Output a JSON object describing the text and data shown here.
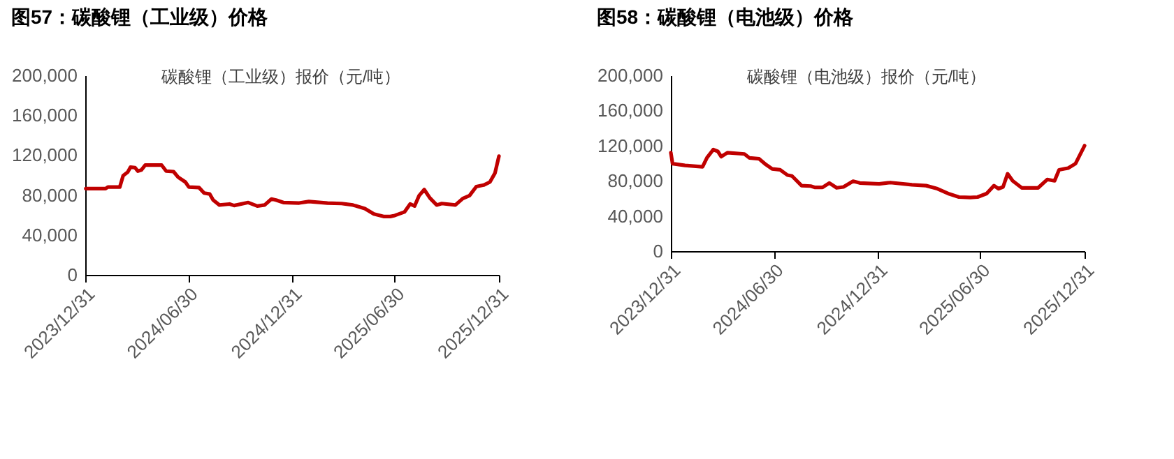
{
  "chart_data": [
    {
      "type": "line",
      "title": "图57：碳酸锂（工业级）价格",
      "annotations": [
        "碳酸锂（工业级）报价（元/吨）"
      ],
      "series": [
        {
          "color": "#c00000",
          "x": [
            "2024-01-01",
            "2024-02-05",
            "2024-02-09",
            "2024-03-01",
            "2024-03-07",
            "2024-03-15",
            "2024-03-20",
            "2024-03-28",
            "2024-04-02",
            "2024-04-08",
            "2024-04-15",
            "2024-05-14",
            "2024-05-22",
            "2024-06-04",
            "2024-06-12",
            "2024-06-25",
            "2024-07-01",
            "2024-07-19",
            "2024-07-28",
            "2024-08-07",
            "2024-08-13",
            "2024-08-24",
            "2024-09-11",
            "2024-09-19",
            "2024-10-14",
            "2024-10-30",
            "2024-11-12",
            "2024-11-24",
            "2024-12-02",
            "2024-12-15",
            "2025-01-12",
            "2025-01-29",
            "2025-03-03",
            "2025-03-28",
            "2025-04-17",
            "2025-05-08",
            "2025-05-24",
            "2025-06-10",
            "2025-06-22",
            "2025-06-30",
            "2025-07-17",
            "2025-07-27",
            "2025-08-04",
            "2025-08-12",
            "2025-08-21",
            "2025-08-31",
            "2025-09-12",
            "2025-09-21",
            "2025-10-15",
            "2025-10-28",
            "2025-11-09",
            "2025-11-21",
            "2025-12-04",
            "2025-12-15",
            "2025-12-24",
            "2025-12-31"
          ],
          "values": [
            86500,
            86500,
            88000,
            88000,
            99500,
            103000,
            108000,
            107500,
            104000,
            105000,
            110000,
            110000,
            104000,
            103500,
            98000,
            93000,
            88000,
            87500,
            82000,
            81000,
            75000,
            70000,
            71000,
            69500,
            72500,
            69000,
            70000,
            76000,
            75000,
            72500,
            72000,
            73500,
            72000,
            71500,
            70000,
            66500,
            61000,
            58500,
            58500,
            59500,
            63000,
            71000,
            69000,
            79500,
            85500,
            77000,
            70000,
            71500,
            70000,
            76500,
            79500,
            88500,
            90000,
            93000,
            102000,
            119000
          ]
        }
      ],
      "xlim": [
        "2023-12-31",
        "2025-12-31"
      ],
      "xticks": [
        {
          "value": "2023-12-31",
          "label": "2023/12/31"
        },
        {
          "value": "2024-06-30",
          "label": "2024/06/30"
        },
        {
          "value": "2024-12-31",
          "label": "2024/12/31"
        },
        {
          "value": "2025-06-30",
          "label": "2025/06/30"
        },
        {
          "value": "2025-12-31",
          "label": "2025/12/31"
        }
      ],
      "ylim": [
        0,
        200000
      ],
      "yticks": [
        {
          "value": 0,
          "label": "0"
        },
        {
          "value": 40000,
          "label": "40,000"
        },
        {
          "value": 80000,
          "label": "80,000"
        },
        {
          "value": 120000,
          "label": "120,000"
        },
        {
          "value": 160000,
          "label": "160,000"
        },
        {
          "value": 200000,
          "label": "200,000"
        }
      ],
      "grid": false
    },
    {
      "type": "line",
      "title": "图58：碳酸锂（电池级）价格",
      "annotations": [
        "碳酸锂（电池级）报价（元/吨）"
      ],
      "series": [
        {
          "color": "#c00000",
          "x": [
            "2023-12-31",
            "2024-01-03",
            "2024-01-25",
            "2024-02-25",
            "2024-03-04",
            "2024-03-15",
            "2024-03-23",
            "2024-03-29",
            "2024-04-09",
            "2024-05-09",
            "2024-05-18",
            "2024-06-04",
            "2024-06-16",
            "2024-06-27",
            "2024-07-11",
            "2024-07-24",
            "2024-08-01",
            "2024-08-18",
            "2024-09-03",
            "2024-09-11",
            "2024-09-24",
            "2024-10-06",
            "2024-10-19",
            "2024-10-31",
            "2024-11-17",
            "2024-11-29",
            "2025-01-02",
            "2025-01-22",
            "2025-03-01",
            "2025-03-26",
            "2025-04-15",
            "2025-05-06",
            "2025-05-23",
            "2025-06-12",
            "2025-06-25",
            "2025-07-11",
            "2025-07-24",
            "2025-08-01",
            "2025-08-09",
            "2025-08-17",
            "2025-08-26",
            "2025-09-11",
            "2025-10-10",
            "2025-10-26",
            "2025-11-08",
            "2025-11-16",
            "2025-12-02",
            "2025-12-15",
            "2025-12-31"
          ],
          "values": [
            112000,
            99500,
            97500,
            96000,
            106500,
            115500,
            113500,
            107500,
            112000,
            110500,
            106000,
            105000,
            98500,
            93500,
            92500,
            86500,
            85500,
            74500,
            74000,
            72500,
            72500,
            77500,
            72000,
            73000,
            79500,
            77500,
            76500,
            78000,
            75500,
            74500,
            71000,
            65000,
            61500,
            61000,
            61500,
            65500,
            74500,
            71000,
            73000,
            88000,
            80000,
            72000,
            72000,
            81500,
            80000,
            92500,
            94500,
            99500,
            120000
          ]
        }
      ],
      "xlim": [
        "2023-12-31",
        "2025-12-31"
      ],
      "xticks": [
        {
          "value": "2023-12-31",
          "label": "2023/12/31"
        },
        {
          "value": "2024-06-30",
          "label": "2024/06/30"
        },
        {
          "value": "2024-12-31",
          "label": "2024/12/31"
        },
        {
          "value": "2025-06-30",
          "label": "2025/06/30"
        },
        {
          "value": "2025-12-31",
          "label": "2025/12/31"
        }
      ],
      "ylim": [
        0,
        200000
      ],
      "yticks": [
        {
          "value": 0,
          "label": "0"
        },
        {
          "value": 40000,
          "label": "40,000"
        },
        {
          "value": 80000,
          "label": "80,000"
        },
        {
          "value": 120000,
          "label": "120,000"
        },
        {
          "value": 160000,
          "label": "160,000"
        },
        {
          "value": 200000,
          "label": "200,000"
        }
      ],
      "grid": false
    }
  ]
}
